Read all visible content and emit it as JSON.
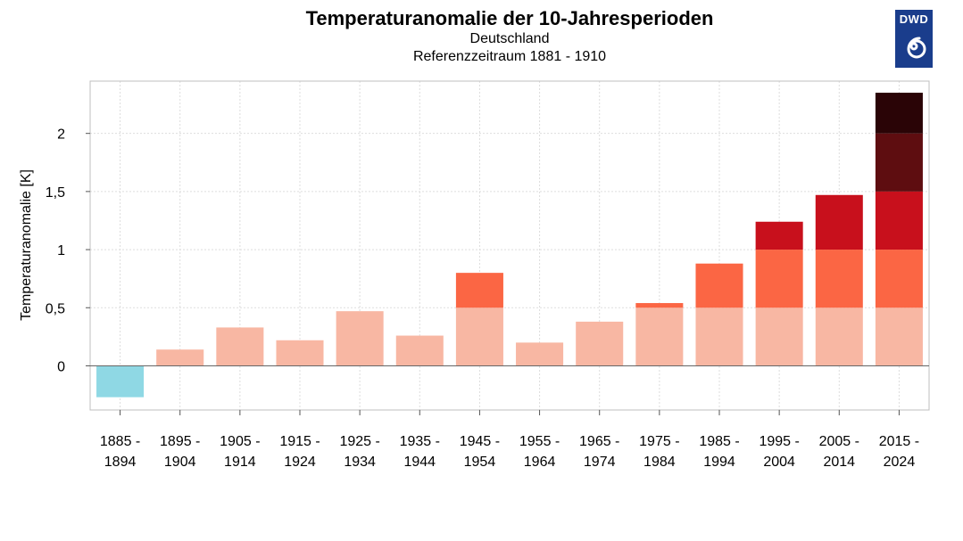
{
  "header": {
    "title": "Temperaturanomalie der 10-Jahresperioden",
    "subtitle1": "Deutschland",
    "subtitle2": "Referenzzeitraum 1881 - 1910"
  },
  "logo": {
    "text": "DWD",
    "icon": "dwd-swirl-icon",
    "color": "#1a3d8c"
  },
  "chart_data": {
    "type": "bar",
    "title": "Temperaturanomalie der 10-Jahresperioden",
    "subtitle": [
      "Deutschland",
      "Referenzzeitraum 1881 - 1910"
    ],
    "xlabel": "",
    "ylabel": "Temperaturanomalie [K]",
    "ylim": [
      -0.38,
      2.45
    ],
    "yticks": [
      0,
      0.5,
      1,
      1.5,
      2
    ],
    "ytick_labels": [
      "0",
      "0,5",
      "1",
      "1,5",
      "2"
    ],
    "grid": true,
    "categories": [
      [
        "1885 -",
        "1894"
      ],
      [
        "1895 -",
        "1904"
      ],
      [
        "1905 -",
        "1914"
      ],
      [
        "1915 -",
        "1924"
      ],
      [
        "1925 -",
        "1934"
      ],
      [
        "1935 -",
        "1944"
      ],
      [
        "1945 -",
        "1954"
      ],
      [
        "1955 -",
        "1964"
      ],
      [
        "1965 -",
        "1974"
      ],
      [
        "1975 -",
        "1984"
      ],
      [
        "1985 -",
        "1994"
      ],
      [
        "1995 -",
        "2004"
      ],
      [
        "2005 -",
        "2014"
      ],
      [
        "2015 -",
        "2024"
      ]
    ],
    "values": [
      -0.27,
      0.14,
      0.33,
      0.22,
      0.47,
      0.26,
      0.8,
      0.2,
      0.38,
      0.54,
      0.88,
      1.24,
      1.47,
      2.35
    ],
    "color_bands": [
      {
        "from": -10,
        "to": 0,
        "color": "#8fd8e4"
      },
      {
        "from": 0,
        "to": 0.5,
        "color": "#f8b7a3"
      },
      {
        "from": 0.5,
        "to": 1.0,
        "color": "#fb6644"
      },
      {
        "from": 1.0,
        "to": 1.5,
        "color": "#c8101c"
      },
      {
        "from": 1.5,
        "to": 2.0,
        "color": "#5e0d10"
      },
      {
        "from": 2.0,
        "to": 10,
        "color": "#2a0406"
      }
    ]
  }
}
